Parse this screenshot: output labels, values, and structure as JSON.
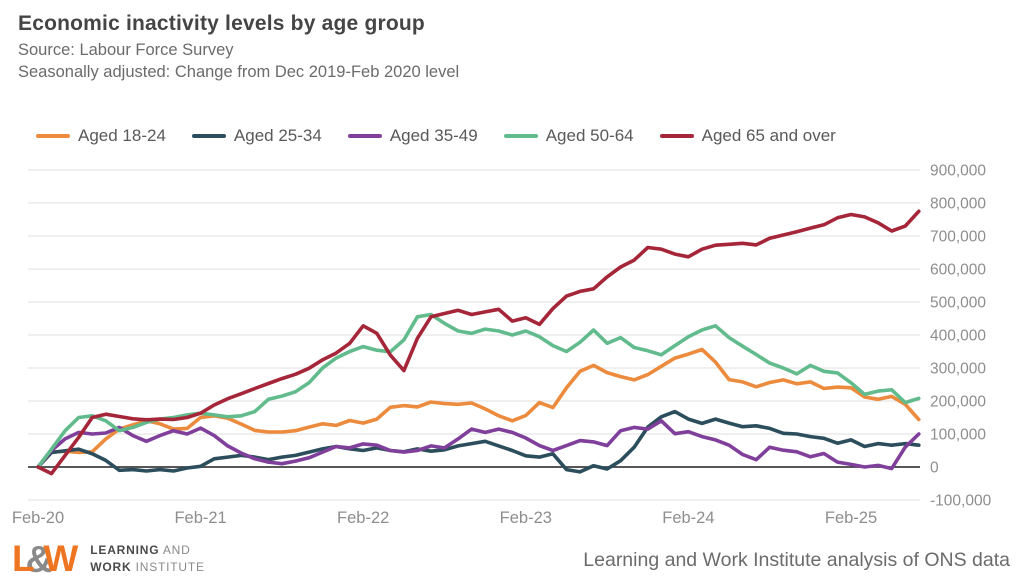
{
  "header": {
    "title": "Economic inactivity levels by age group",
    "source": "Source: Labour Force Survey",
    "subtitle": "Seasonally adjusted: Change from Dec 2019-Feb 2020 level"
  },
  "footer": {
    "note": "Learning and Work Institute analysis of ONS data",
    "logo": {
      "letter_l": "L",
      "ampersand": "&",
      "letter_w": "W",
      "word1_bold": "LEARNING",
      "word1_light": "AND",
      "word2_bold": "WORK",
      "word2_light": "INSTITUTE"
    }
  },
  "colors": {
    "grid": "#dfdfdf",
    "zero_line": "#3f3f3f",
    "axis_text": "#8e8e8e",
    "legend_text": "#595959"
  },
  "chart_data": {
    "type": "line",
    "title": "Economic inactivity levels by age group",
    "xlabel": "",
    "ylabel": "",
    "legend_position": "top",
    "grid": true,
    "unit_note": "values stored in thousands; monthly points from Feb-20 to Jul-25",
    "ylim_thousands": [
      -100,
      900
    ],
    "y_axis": {
      "ticks": [
        {
          "value": 900000,
          "label": "900,000"
        },
        {
          "value": 800000,
          "label": "800,000"
        },
        {
          "value": 700000,
          "label": "700,000"
        },
        {
          "value": 600000,
          "label": "600,000"
        },
        {
          "value": 500000,
          "label": "500,000"
        },
        {
          "value": 400000,
          "label": "400,000"
        },
        {
          "value": 300000,
          "label": "300,000"
        },
        {
          "value": 200000,
          "label": "200,000"
        },
        {
          "value": 100000,
          "label": "100,000"
        },
        {
          "value": 0,
          "label": "0"
        },
        {
          "value": -100000,
          "label": "-100,000"
        }
      ]
    },
    "x_axis": {
      "ticks": [
        {
          "index": 0,
          "label": "Feb-20"
        },
        {
          "index": 12,
          "label": "Feb-21"
        },
        {
          "index": 24,
          "label": "Feb-22"
        },
        {
          "index": 36,
          "label": "Feb-23"
        },
        {
          "index": 48,
          "label": "Feb-24"
        },
        {
          "index": 60,
          "label": "Feb-25"
        }
      ]
    },
    "series": [
      {
        "name": "Aged 18-24",
        "color": "#ec8b3d",
        "values_thousands": [
          0,
          45,
          48,
          44,
          46,
          85,
          115,
          128,
          140,
          131,
          115,
          117,
          150,
          155,
          148,
          130,
          111,
          106,
          106,
          110,
          121,
          131,
          126,
          141,
          133,
          145,
          181,
          186,
          182,
          197,
          192,
          190,
          194,
          176,
          155,
          140,
          156,
          195,
          180,
          240,
          290,
          308,
          286,
          274,
          264,
          280,
          305,
          330,
          342,
          356,
          318,
          265,
          258,
          243,
          256,
          264,
          252,
          258,
          238,
          242,
          240,
          212,
          205,
          214,
          190,
          144
        ]
      },
      {
        "name": "Aged 25-34",
        "color": "#2c4e5c",
        "values_thousands": [
          0,
          44,
          49,
          54,
          40,
          20,
          -10,
          -8,
          -12,
          -8,
          -12,
          -3,
          2,
          25,
          30,
          35,
          30,
          22,
          30,
          35,
          45,
          55,
          62,
          55,
          50,
          58,
          50,
          46,
          55,
          48,
          52,
          64,
          71,
          78,
          64,
          50,
          34,
          30,
          40,
          -8,
          -15,
          4,
          -6,
          19,
          60,
          121,
          152,
          168,
          145,
          132,
          145,
          133,
          122,
          125,
          117,
          102,
          100,
          92,
          87,
          72,
          82,
          62,
          71,
          66,
          71,
          66
        ]
      },
      {
        "name": "Aged 35-49",
        "color": "#7f3f9b",
        "values_thousands": [
          0,
          50,
          85,
          105,
          100,
          103,
          120,
          95,
          78,
          95,
          110,
          100,
          118,
          95,
          64,
          42,
          25,
          15,
          10,
          18,
          28,
          45,
          62,
          58,
          70,
          66,
          50,
          45,
          50,
          64,
          58,
          85,
          115,
          105,
          115,
          105,
          88,
          65,
          50,
          65,
          80,
          76,
          65,
          110,
          120,
          115,
          140,
          101,
          107,
          92,
          82,
          66,
          38,
          22,
          60,
          51,
          46,
          31,
          41,
          15,
          8,
          0,
          5,
          -5,
          60,
          100
        ]
      },
      {
        "name": "Aged 50-64",
        "color": "#62bb8c",
        "values_thousands": [
          0,
          54,
          110,
          150,
          155,
          140,
          110,
          120,
          135,
          145,
          150,
          158,
          163,
          158,
          152,
          155,
          168,
          205,
          215,
          228,
          255,
          300,
          330,
          350,
          365,
          354,
          349,
          385,
          455,
          462,
          435,
          412,
          405,
          418,
          412,
          400,
          412,
          395,
          368,
          350,
          378,
          415,
          375,
          392,
          362,
          352,
          340,
          368,
          395,
          415,
          428,
          392,
          366,
          341,
          315,
          300,
          282,
          308,
          290,
          285,
          255,
          220,
          230,
          234,
          195,
          208
        ]
      },
      {
        "name": "Aged 65 and over",
        "color": "#a62639",
        "values_thousands": [
          0,
          -20,
          35,
          90,
          150,
          160,
          153,
          146,
          143,
          145,
          144,
          150,
          163,
          188,
          207,
          222,
          238,
          253,
          268,
          281,
          299,
          325,
          345,
          375,
          428,
          405,
          339,
          292,
          390,
          455,
          465,
          475,
          462,
          470,
          478,
          442,
          452,
          432,
          480,
          518,
          532,
          540,
          576,
          606,
          627,
          665,
          660,
          645,
          637,
          660,
          672,
          675,
          678,
          673,
          693,
          703,
          713,
          724,
          734,
          755,
          765,
          758,
          740,
          715,
          730,
          775
        ]
      }
    ]
  }
}
